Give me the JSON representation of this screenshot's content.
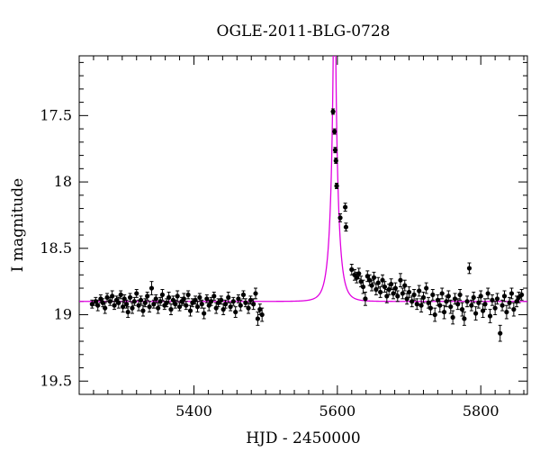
{
  "chart_data": {
    "type": "scatter",
    "title": "OGLE-2011-BLG-0728",
    "xlabel": "HJD - 2450000",
    "ylabel": "I magnitude",
    "xlim": [
      5240,
      5865
    ],
    "ylim": [
      19.6,
      17.05
    ],
    "y_inverted": true,
    "x_ticks": [
      5400,
      5600,
      5800
    ],
    "y_ticks": [
      17.5,
      18,
      18.5,
      19,
      19.5
    ],
    "x_tick_labels": [
      "5400",
      "5600",
      "5800"
    ],
    "y_tick_labels": [
      "17.5",
      "18",
      "18.5",
      "19",
      "19.5"
    ],
    "grid": false,
    "colors": {
      "points": "#000000",
      "model": "#e000e0"
    },
    "model_curve": {
      "baseline_mag": 18.9,
      "peak_time": 5596,
      "model_params": {
        "t0": 5596,
        "u0": 0.02,
        "tE": 10
      }
    },
    "series": [
      {
        "values": [
          [
            5258,
            18.92,
            0.03
          ],
          [
            5263,
            18.9,
            0.03
          ],
          [
            5266,
            18.93,
            0.04
          ],
          [
            5270,
            18.88,
            0.03
          ],
          [
            5273,
            18.91,
            0.03
          ],
          [
            5276,
            18.95,
            0.04
          ],
          [
            5279,
            18.87,
            0.03
          ],
          [
            5283,
            18.9,
            0.03
          ],
          [
            5286,
            18.86,
            0.04
          ],
          [
            5289,
            18.93,
            0.03
          ],
          [
            5292,
            18.89,
            0.03
          ],
          [
            5295,
            18.91,
            0.04
          ],
          [
            5298,
            18.85,
            0.03
          ],
          [
            5301,
            18.94,
            0.04
          ],
          [
            5303,
            18.88,
            0.03
          ],
          [
            5306,
            18.92,
            0.03
          ],
          [
            5308,
            18.98,
            0.04
          ],
          [
            5311,
            18.87,
            0.03
          ],
          [
            5314,
            18.95,
            0.04
          ],
          [
            5317,
            18.9,
            0.03
          ],
          [
            5320,
            18.84,
            0.03
          ],
          [
            5323,
            18.93,
            0.04
          ],
          [
            5326,
            18.89,
            0.03
          ],
          [
            5329,
            18.97,
            0.04
          ],
          [
            5332,
            18.91,
            0.03
          ],
          [
            5335,
            18.86,
            0.03
          ],
          [
            5338,
            18.94,
            0.04
          ],
          [
            5341,
            18.8,
            0.05
          ],
          [
            5344,
            18.92,
            0.03
          ],
          [
            5347,
            18.88,
            0.03
          ],
          [
            5350,
            18.95,
            0.04
          ],
          [
            5353,
            18.9,
            0.03
          ],
          [
            5356,
            18.85,
            0.04
          ],
          [
            5359,
            18.93,
            0.03
          ],
          [
            5362,
            18.91,
            0.03
          ],
          [
            5365,
            18.87,
            0.04
          ],
          [
            5368,
            18.96,
            0.04
          ],
          [
            5371,
            18.89,
            0.03
          ],
          [
            5374,
            18.92,
            0.03
          ],
          [
            5377,
            18.86,
            0.04
          ],
          [
            5380,
            18.94,
            0.03
          ],
          [
            5383,
            18.9,
            0.03
          ],
          [
            5386,
            18.88,
            0.04
          ],
          [
            5389,
            18.93,
            0.03
          ],
          [
            5392,
            18.85,
            0.03
          ],
          [
            5395,
            18.97,
            0.04
          ],
          [
            5398,
            18.91,
            0.03
          ],
          [
            5402,
            18.89,
            0.03
          ],
          [
            5405,
            18.94,
            0.04
          ],
          [
            5408,
            18.87,
            0.03
          ],
          [
            5411,
            18.92,
            0.03
          ],
          [
            5414,
            18.99,
            0.04
          ],
          [
            5418,
            18.88,
            0.03
          ],
          [
            5421,
            18.93,
            0.04
          ],
          [
            5424,
            18.9,
            0.03
          ],
          [
            5428,
            18.86,
            0.03
          ],
          [
            5431,
            18.95,
            0.04
          ],
          [
            5434,
            18.91,
            0.03
          ],
          [
            5438,
            18.89,
            0.03
          ],
          [
            5441,
            18.96,
            0.04
          ],
          [
            5444,
            18.92,
            0.03
          ],
          [
            5448,
            18.87,
            0.04
          ],
          [
            5451,
            18.94,
            0.03
          ],
          [
            5455,
            18.9,
            0.03
          ],
          [
            5458,
            18.98,
            0.04
          ],
          [
            5462,
            18.88,
            0.03
          ],
          [
            5465,
            18.93,
            0.04
          ],
          [
            5469,
            18.85,
            0.03
          ],
          [
            5472,
            18.91,
            0.03
          ],
          [
            5476,
            18.95,
            0.04
          ],
          [
            5479,
            18.89,
            0.03
          ],
          [
            5483,
            18.92,
            0.04
          ],
          [
            5486,
            18.84,
            0.04
          ],
          [
            5489,
            19.03,
            0.05
          ],
          [
            5492,
            18.96,
            0.04
          ],
          [
            5495,
            19.0,
            0.05
          ],
          [
            5594,
            17.47,
            0.02
          ],
          [
            5596,
            17.62,
            0.02
          ],
          [
            5597,
            17.76,
            0.02
          ],
          [
            5598,
            17.84,
            0.02
          ],
          [
            5599,
            18.03,
            0.02
          ],
          [
            5604,
            18.27,
            0.03
          ],
          [
            5611,
            18.19,
            0.03
          ],
          [
            5612,
            18.34,
            0.03
          ],
          [
            5620,
            18.66,
            0.04
          ],
          [
            5624,
            18.7,
            0.04
          ],
          [
            5627,
            18.72,
            0.04
          ],
          [
            5630,
            18.69,
            0.04
          ],
          [
            5633,
            18.75,
            0.04
          ],
          [
            5636,
            18.79,
            0.05
          ],
          [
            5639,
            18.88,
            0.05
          ],
          [
            5642,
            18.71,
            0.04
          ],
          [
            5645,
            18.74,
            0.04
          ],
          [
            5648,
            18.78,
            0.04
          ],
          [
            5651,
            18.72,
            0.04
          ],
          [
            5654,
            18.81,
            0.04
          ],
          [
            5657,
            18.76,
            0.04
          ],
          [
            5660,
            18.83,
            0.04
          ],
          [
            5663,
            18.74,
            0.04
          ],
          [
            5666,
            18.79,
            0.04
          ],
          [
            5669,
            18.86,
            0.05
          ],
          [
            5672,
            18.81,
            0.04
          ],
          [
            5675,
            18.77,
            0.04
          ],
          [
            5678,
            18.84,
            0.04
          ],
          [
            5681,
            18.8,
            0.04
          ],
          [
            5684,
            18.86,
            0.04
          ],
          [
            5688,
            18.74,
            0.05
          ],
          [
            5691,
            18.84,
            0.04
          ],
          [
            5694,
            18.78,
            0.04
          ],
          [
            5697,
            18.88,
            0.04
          ],
          [
            5700,
            18.83,
            0.04
          ],
          [
            5704,
            18.9,
            0.04
          ],
          [
            5707,
            18.85,
            0.04
          ],
          [
            5711,
            18.92,
            0.04
          ],
          [
            5714,
            18.82,
            0.04
          ],
          [
            5717,
            18.93,
            0.05
          ],
          [
            5720,
            18.87,
            0.04
          ],
          [
            5724,
            18.8,
            0.04
          ],
          [
            5727,
            18.91,
            0.04
          ],
          [
            5730,
            18.95,
            0.05
          ],
          [
            5733,
            18.85,
            0.04
          ],
          [
            5736,
            19.0,
            0.05
          ],
          [
            5740,
            18.89,
            0.04
          ],
          [
            5743,
            18.93,
            0.05
          ],
          [
            5746,
            18.84,
            0.04
          ],
          [
            5749,
            18.98,
            0.05
          ],
          [
            5752,
            18.9,
            0.04
          ],
          [
            5755,
            18.86,
            0.04
          ],
          [
            5758,
            18.94,
            0.05
          ],
          [
            5761,
            19.02,
            0.05
          ],
          [
            5764,
            18.88,
            0.04
          ],
          [
            5768,
            18.92,
            0.04
          ],
          [
            5771,
            18.85,
            0.04
          ],
          [
            5774,
            18.96,
            0.05
          ],
          [
            5777,
            19.03,
            0.05
          ],
          [
            5781,
            18.9,
            0.04
          ],
          [
            5784,
            18.65,
            0.04
          ],
          [
            5787,
            18.93,
            0.04
          ],
          [
            5790,
            18.87,
            0.04
          ],
          [
            5793,
            18.99,
            0.05
          ],
          [
            5797,
            18.91,
            0.04
          ],
          [
            5800,
            18.86,
            0.04
          ],
          [
            5803,
            18.97,
            0.05
          ],
          [
            5806,
            18.92,
            0.04
          ],
          [
            5810,
            18.84,
            0.04
          ],
          [
            5813,
            19.01,
            0.05
          ],
          [
            5816,
            18.89,
            0.04
          ],
          [
            5820,
            18.95,
            0.05
          ],
          [
            5823,
            18.88,
            0.04
          ],
          [
            5827,
            19.14,
            0.06
          ],
          [
            5830,
            18.93,
            0.04
          ],
          [
            5833,
            18.86,
            0.04
          ],
          [
            5836,
            18.98,
            0.05
          ],
          [
            5840,
            18.91,
            0.04
          ],
          [
            5843,
            18.84,
            0.04
          ],
          [
            5846,
            18.96,
            0.05
          ],
          [
            5850,
            18.9,
            0.04
          ],
          [
            5853,
            18.87,
            0.04
          ],
          [
            5857,
            18.85,
            0.04
          ]
        ]
      }
    ]
  }
}
